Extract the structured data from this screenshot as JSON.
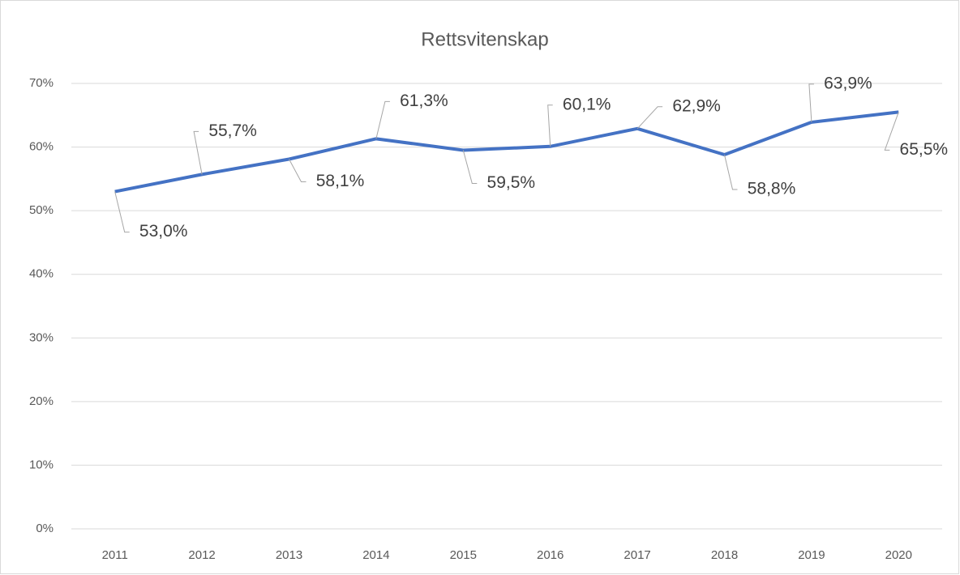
{
  "chart_data": {
    "type": "line",
    "title": "Rettsvitenskap",
    "categories": [
      "2011",
      "2012",
      "2013",
      "2014",
      "2015",
      "2016",
      "2017",
      "2018",
      "2019",
      "2020"
    ],
    "series": [
      {
        "name": "Rettsvitenskap",
        "color": "#4472c4",
        "values": [
          53.0,
          55.7,
          58.1,
          61.3,
          59.5,
          60.1,
          62.9,
          58.8,
          63.9,
          65.5
        ],
        "value_labels": [
          "53,0%",
          "55,7%",
          "58,1%",
          "61,3%",
          "59,5%",
          "60,1%",
          "62,9%",
          "58,8%",
          "63,9%",
          "65,5%"
        ]
      }
    ],
    "ylim": [
      0,
      70
    ],
    "yticks": [
      {
        "value": 0,
        "label": "0%"
      },
      {
        "value": 10,
        "label": "10%"
      },
      {
        "value": 20,
        "label": "20%"
      },
      {
        "value": 30,
        "label": "30%"
      },
      {
        "value": 40,
        "label": "40%"
      },
      {
        "value": 50,
        "label": "50%"
      },
      {
        "value": 60,
        "label": "60%"
      },
      {
        "value": 70,
        "label": "70%"
      }
    ],
    "grid": true
  }
}
